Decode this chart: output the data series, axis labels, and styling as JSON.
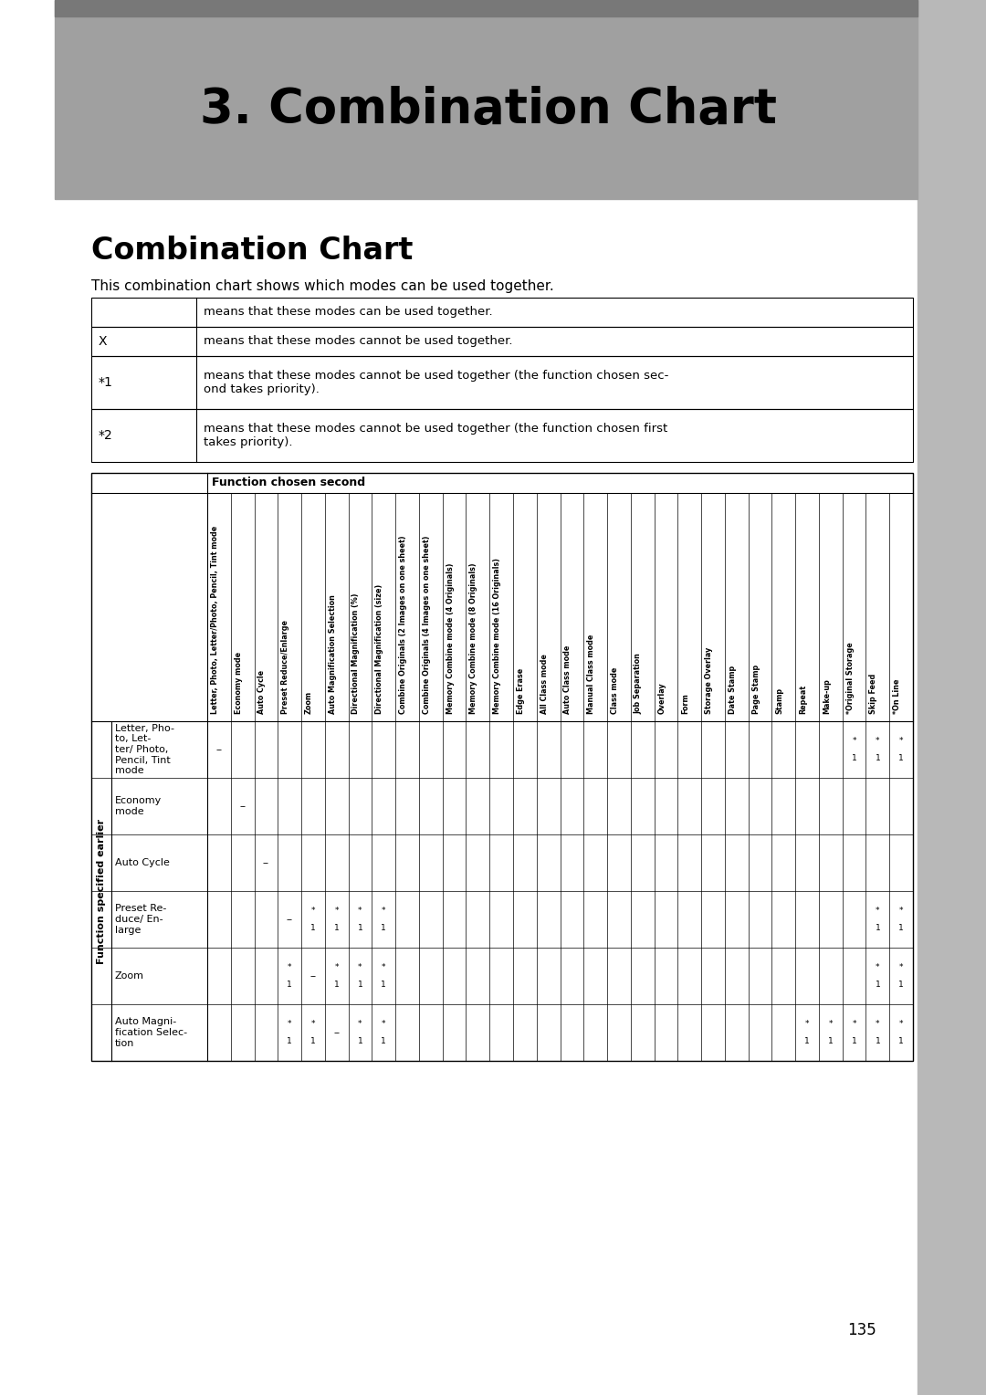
{
  "page_title": "3. Combination Chart",
  "section_title": "Combination Chart",
  "intro_text": "This combination chart shows which modes can be used together.",
  "legend_rows": [
    {
      "symbol": "",
      "description": "means that these modes can be used together."
    },
    {
      "symbol": "X",
      "description": "means that these modes cannot be used together."
    },
    {
      "symbol": "*1",
      "description": "means that these modes cannot be used together (the function chosen sec-\nond takes priority)."
    },
    {
      "symbol": "*2",
      "description": "means that these modes cannot be used together (the function chosen first\ntakes priority)."
    }
  ],
  "col_header_label": "Function chosen second",
  "col_headers": [
    "Letter, Photo, Letter/Photo, Pencil, Tint mode",
    "Economy mode",
    "Auto Cycle",
    "Preset Reduce/Enlarge",
    "Zoom",
    "Auto Magnification Selection",
    "Directional Magnification (%)",
    "Directional Magnification (size)",
    "Combine Originals (2 Images on one sheet)",
    "Combine Originals (4 Images on one sheet)",
    "Memory Combine mode (4 Originals)",
    "Memory Combine mode (8 Originals)",
    "Memory Combine mode (16 Originals)",
    "Edge Erase",
    "All Class mode",
    "Auto Class mode",
    "Manual Class mode",
    "Class mode",
    "Job Separation",
    "Overlay",
    "Form",
    "Storage Overlay",
    "Date Stamp",
    "Page Stamp",
    "Stamp",
    "Repeat",
    "Make-up",
    "*Original Storage",
    "Skip Feed",
    "*On Line"
  ],
  "row_header_label": "Function specified earlier",
  "row_headers": [
    "Letter, Pho-\nto, Let-\nter/ Photo,\nPencil, Tint\nmode",
    "Economy\nmode",
    "Auto Cycle",
    "Preset Re-\nduce/ En-\nlarge",
    "Zoom",
    "Auto Magni-\nfication Selec-\ntion"
  ],
  "table_data": [
    [
      "--",
      "",
      "",
      "",
      "",
      "",
      "",
      "",
      "",
      "",
      "",
      "",
      "",
      "",
      "",
      "",
      "",
      "",
      "",
      "",
      "",
      "",
      "",
      "",
      "",
      "",
      "",
      "*\n1",
      "*\n1",
      "*\n1"
    ],
    [
      "",
      "--",
      "",
      "",
      "",
      "",
      "",
      "",
      "",
      "",
      "",
      "",
      "",
      "",
      "",
      "",
      "",
      "",
      "",
      "",
      "",
      "",
      "",
      "",
      "",
      "",
      "",
      "",
      "",
      ""
    ],
    [
      "",
      "",
      "--",
      "",
      "",
      "",
      "",
      "",
      "",
      "",
      "",
      "",
      "",
      "",
      "",
      "",
      "",
      "",
      "",
      "",
      "",
      "",
      "",
      "",
      "",
      "",
      "",
      "",
      "",
      ""
    ],
    [
      "",
      "",
      "",
      "--",
      "*\n1",
      "*\n1",
      "*\n1",
      "*\n1",
      "",
      "",
      "",
      "",
      "",
      "",
      "",
      "",
      "",
      "",
      "",
      "",
      "",
      "",
      "",
      "",
      "",
      "",
      "",
      "",
      "*\n1",
      "*\n1"
    ],
    [
      "",
      "",
      "",
      "*\n1",
      "--",
      "*\n1",
      "*\n1",
      "*\n1",
      "",
      "",
      "",
      "",
      "",
      "",
      "",
      "",
      "",
      "",
      "",
      "",
      "",
      "",
      "",
      "",
      "",
      "",
      "",
      "",
      "*\n1",
      "*\n1"
    ],
    [
      "",
      "",
      "",
      "*\n1",
      "*\n1",
      "--",
      "*\n1",
      "*\n1",
      "",
      "",
      "",
      "",
      "",
      "",
      "",
      "",
      "",
      "",
      "",
      "",
      "",
      "",
      "",
      "",
      "",
      "*\n1",
      "*\n1",
      "*\n1",
      "*\n1",
      "*\n1"
    ]
  ],
  "background_color": "#ffffff",
  "right_sidebar_color": "#b8b8b8",
  "banner_bg": "#a0a0a0",
  "banner_dark_stripe": "#787878",
  "page_number": "135"
}
